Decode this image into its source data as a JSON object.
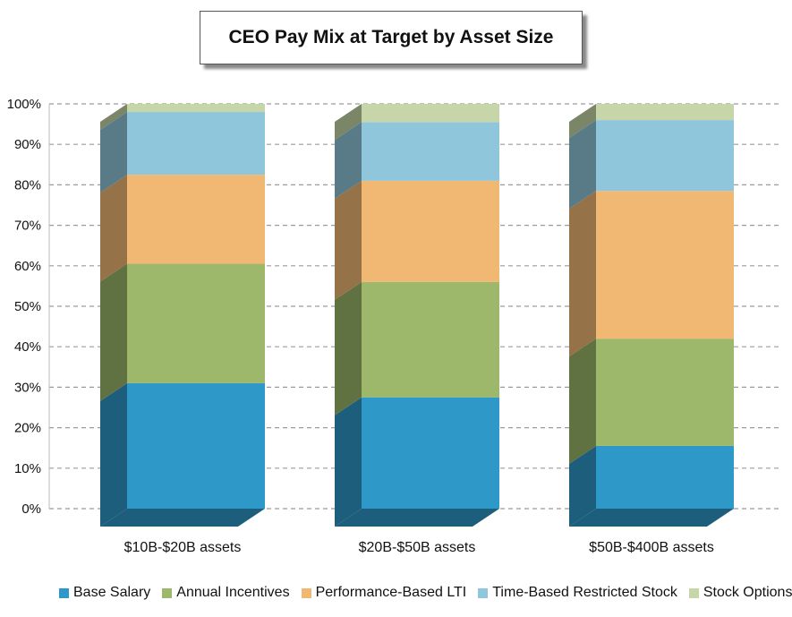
{
  "chart_data": {
    "type": "bar",
    "stacked": true,
    "title": "CEO Pay Mix at Target by Asset Size",
    "categories": [
      "$10B-$20B assets",
      "$20B-$50B assets",
      "$50B-$400B assets"
    ],
    "series": [
      {
        "name": "Base Salary",
        "color": "#2e98c8",
        "values": [
          31,
          27.5,
          15.5
        ]
      },
      {
        "name": "Annual Incentives",
        "color": "#9db86b",
        "values": [
          29.5,
          28.5,
          26.5
        ]
      },
      {
        "name": "Performance-Based LTI",
        "color": "#f0b872",
        "values": [
          22,
          25,
          36.5
        ]
      },
      {
        "name": "Time-Based Restricted Stock",
        "color": "#90c6db",
        "values": [
          15.5,
          14.5,
          17.5
        ]
      },
      {
        "name": "Stock Options",
        "color": "#c6d6a8",
        "values": [
          2,
          4.5,
          4
        ]
      }
    ],
    "y_ticks": [
      "0%",
      "10%",
      "20%",
      "30%",
      "40%",
      "50%",
      "60%",
      "70%",
      "80%",
      "90%",
      "100%"
    ],
    "ylim": [
      0,
      100
    ],
    "grid": true,
    "legend_position": "bottom"
  }
}
